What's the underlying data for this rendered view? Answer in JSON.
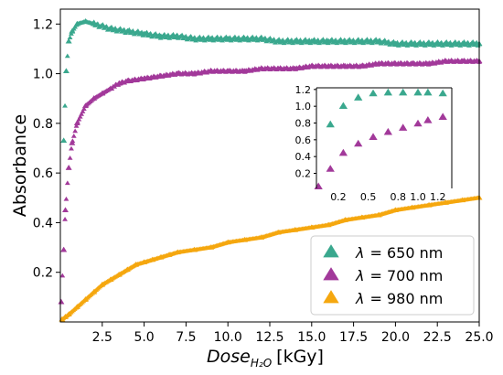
{
  "chart_data": [
    {
      "id": "main",
      "type": "scatter",
      "xlabel": "Dose",
      "xlabel_sub": "H₂O",
      "xlabel_unit": "[kGy]",
      "ylabel": "Absorbance",
      "xlim": [
        0,
        25
      ],
      "ylim": [
        0,
        1.26
      ],
      "x_ticks": [
        2.5,
        5.0,
        7.5,
        10.0,
        12.5,
        15.0,
        17.5,
        20.0,
        22.5,
        25.0
      ],
      "x_tick_labels": [
        "2.5",
        "5.0",
        "7.5",
        "10.0",
        "12.5",
        "15.0",
        "17.5",
        "20.0",
        "22.5",
        "25.0"
      ],
      "y_ticks": [
        0.2,
        0.4,
        0.6,
        0.8,
        1.0,
        1.2
      ],
      "y_tick_labels": [
        "0.2",
        "0.4",
        "0.6",
        "0.8",
        "1.0",
        "1.2"
      ],
      "legend_position": "bottom-right",
      "marker": "triangle",
      "series": [
        {
          "name": "650",
          "legend_prefix": "λ",
          "legend_suffix": "= 650 nm",
          "color": "#3aa88e",
          "points": [
            [
              0.2,
              0.73
            ],
            [
              0.35,
              1.01
            ],
            [
              0.5,
              1.13
            ],
            [
              0.7,
              1.17
            ],
            [
              1.0,
              1.2
            ],
            [
              1.5,
              1.21
            ],
            [
              2,
              1.2
            ],
            [
              3,
              1.18
            ],
            [
              4,
              1.17
            ],
            [
              5,
              1.16
            ],
            [
              6,
              1.15
            ],
            [
              7,
              1.15
            ],
            [
              8,
              1.14
            ],
            [
              9,
              1.14
            ],
            [
              10,
              1.14
            ],
            [
              11,
              1.14
            ],
            [
              12,
              1.14
            ],
            [
              13,
              1.13
            ],
            [
              14,
              1.13
            ],
            [
              15,
              1.13
            ],
            [
              16,
              1.13
            ],
            [
              17,
              1.13
            ],
            [
              18,
              1.13
            ],
            [
              19,
              1.13
            ],
            [
              20,
              1.12
            ],
            [
              21,
              1.12
            ],
            [
              22,
              1.12
            ],
            [
              23,
              1.12
            ],
            [
              24,
              1.12
            ],
            [
              25,
              1.12
            ]
          ]
        },
        {
          "name": "700",
          "legend_prefix": "λ",
          "legend_suffix": "= 700 nm",
          "color": "#a2399a",
          "points": [
            [
              0.05,
              0.08
            ],
            [
              0.2,
              0.29
            ],
            [
              0.3,
              0.45
            ],
            [
              0.5,
              0.62
            ],
            [
              0.7,
              0.72
            ],
            [
              1.0,
              0.8
            ],
            [
              1.5,
              0.87
            ],
            [
              2,
              0.9
            ],
            [
              2.5,
              0.92
            ],
            [
              3,
              0.94
            ],
            [
              3.5,
              0.96
            ],
            [
              4,
              0.97
            ],
            [
              5,
              0.98
            ],
            [
              6,
              0.99
            ],
            [
              7,
              1.0
            ],
            [
              8,
              1.0
            ],
            [
              9,
              1.01
            ],
            [
              10,
              1.01
            ],
            [
              11,
              1.01
            ],
            [
              12,
              1.02
            ],
            [
              13,
              1.02
            ],
            [
              14,
              1.02
            ],
            [
              15,
              1.03
            ],
            [
              16,
              1.03
            ],
            [
              17,
              1.03
            ],
            [
              18,
              1.03
            ],
            [
              19,
              1.04
            ],
            [
              20,
              1.04
            ],
            [
              21,
              1.04
            ],
            [
              22,
              1.04
            ],
            [
              23,
              1.05
            ],
            [
              24,
              1.05
            ],
            [
              25,
              1.05
            ]
          ]
        },
        {
          "name": "980",
          "legend_prefix": "λ",
          "legend_suffix": "= 980 nm",
          "color": "#f5a70f",
          "points": [
            [
              0.1,
              0.01
            ],
            [
              0.3,
              0.02
            ],
            [
              0.5,
              0.03
            ],
            [
              1,
              0.06
            ],
            [
              1.5,
              0.09
            ],
            [
              2,
              0.12
            ],
            [
              2.5,
              0.15
            ],
            [
              3,
              0.17
            ],
            [
              3.5,
              0.19
            ],
            [
              4,
              0.21
            ],
            [
              4.5,
              0.23
            ],
            [
              5,
              0.24
            ],
            [
              5.5,
              0.25
            ],
            [
              6,
              0.26
            ],
            [
              6.5,
              0.27
            ],
            [
              7,
              0.28
            ],
            [
              8,
              0.29
            ],
            [
              9,
              0.3
            ],
            [
              10,
              0.32
            ],
            [
              11,
              0.33
            ],
            [
              12,
              0.34
            ],
            [
              13,
              0.36
            ],
            [
              14,
              0.37
            ],
            [
              15,
              0.38
            ],
            [
              16,
              0.39
            ],
            [
              17,
              0.41
            ],
            [
              18,
              0.42
            ],
            [
              19,
              0.43
            ],
            [
              20,
              0.45
            ],
            [
              21,
              0.46
            ],
            [
              22,
              0.47
            ],
            [
              23,
              0.48
            ],
            [
              24,
              0.49
            ],
            [
              25,
              0.5
            ]
          ]
        }
      ]
    },
    {
      "id": "inset",
      "type": "scatter",
      "xlim": [
        -0.02,
        1.34
      ],
      "ylim": [
        0.02,
        1.22
      ],
      "x_ticks": [
        0.2,
        0.5,
        0.8,
        1.0,
        1.2
      ],
      "x_tick_labels": [
        "0.2",
        "0.5",
        "0.8",
        "1.0",
        "1.2"
      ],
      "y_ticks": [
        0.2,
        0.4,
        0.6,
        0.8,
        1.0,
        1.2
      ],
      "y_tick_labels": [
        "0.2",
        "0.4",
        "0.6",
        "0.8",
        "1.0",
        "1.2"
      ],
      "marker": "triangle",
      "series": [
        {
          "name": "650",
          "color": "#3aa88e",
          "points": [
            [
              0.12,
              0.78
            ],
            [
              0.25,
              1.0
            ],
            [
              0.4,
              1.1
            ],
            [
              0.55,
              1.15
            ],
            [
              0.7,
              1.16
            ],
            [
              0.85,
              1.16
            ],
            [
              1.0,
              1.16
            ],
            [
              1.1,
              1.16
            ],
            [
              1.25,
              1.15
            ]
          ]
        },
        {
          "name": "700",
          "color": "#a2399a",
          "points": [
            [
              0.0,
              0.04
            ],
            [
              0.12,
              0.25
            ],
            [
              0.25,
              0.44
            ],
            [
              0.4,
              0.55
            ],
            [
              0.55,
              0.63
            ],
            [
              0.7,
              0.69
            ],
            [
              0.85,
              0.74
            ],
            [
              1.0,
              0.79
            ],
            [
              1.1,
              0.83
            ],
            [
              1.25,
              0.87
            ]
          ]
        }
      ]
    }
  ]
}
